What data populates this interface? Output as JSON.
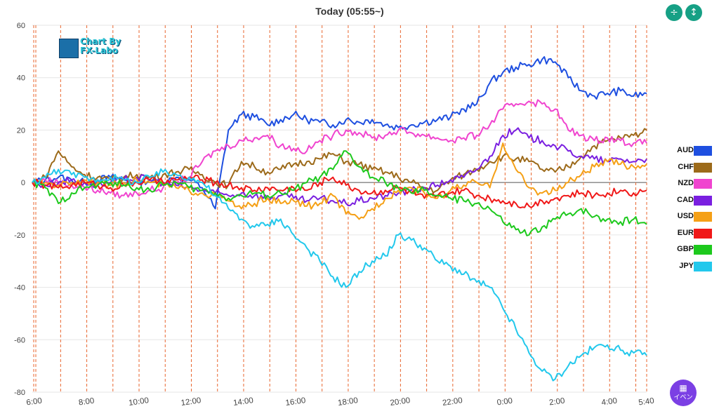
{
  "header": {
    "title": "Today  (05:55~)",
    "compress_icon": "compress-vertical-icon",
    "expand_icon": "expand-vertical-icon"
  },
  "watermark": {
    "line1": "Chart By",
    "line2": "FX-Labo"
  },
  "event_button": {
    "label": "イベン",
    "icon": "calendar-icon"
  },
  "colors": {
    "accent_button": "#16a085",
    "event_button": "#7b3fe4",
    "vline": "#e8652e",
    "zero_line": "#555555",
    "grid": "#e6e6e6"
  },
  "chart_data": {
    "type": "line",
    "title": "Today  (05:55~)",
    "ylim": [
      -80,
      60
    ],
    "yticks": [
      60,
      40,
      20,
      0,
      -20,
      -40,
      -60,
      -80
    ],
    "xlabels": [
      "6:00",
      "8:00",
      "10:00",
      "12:00",
      "14:00",
      "16:00",
      "18:00",
      "20:00",
      "22:00",
      "0:00",
      "2:00",
      "4:00",
      "5:40"
    ],
    "grid": true,
    "legend_position": "right",
    "x": [
      "5:55",
      "6:30",
      "7:00",
      "7:30",
      "8:00",
      "8:30",
      "9:00",
      "9:30",
      "10:00",
      "10:30",
      "11:00",
      "11:30",
      "12:00",
      "12:30",
      "13:00",
      "13:30",
      "14:00",
      "14:30",
      "15:00",
      "15:30",
      "16:00",
      "16:30",
      "17:00",
      "17:30",
      "18:00",
      "18:30",
      "19:00",
      "19:30",
      "20:00",
      "20:30",
      "21:00",
      "21:30",
      "22:00",
      "22:30",
      "23:00",
      "23:30",
      "0:00",
      "0:30",
      "1:00",
      "1:30",
      "2:00",
      "2:30",
      "3:00",
      "3:30",
      "4:00",
      "4:30",
      "5:00",
      "5:40"
    ],
    "series": [
      {
        "name": "AUD",
        "color": "#1e4fe0",
        "values": [
          0,
          1,
          2,
          1,
          0,
          1,
          2,
          1,
          0,
          1,
          0,
          2,
          1,
          -2,
          -10,
          20,
          26,
          25,
          22,
          24,
          26,
          24,
          23,
          22,
          24,
          23,
          24,
          22,
          21,
          22,
          23,
          24,
          25,
          28,
          30,
          38,
          42,
          44,
          45,
          47,
          46,
          40,
          35,
          33,
          34,
          35,
          33,
          34
        ]
      },
      {
        "name": "CHF",
        "color": "#9c6a1a",
        "values": [
          0,
          2,
          12,
          6,
          3,
          2,
          1,
          2,
          3,
          2,
          3,
          4,
          5,
          3,
          0,
          -1,
          8,
          6,
          4,
          5,
          7,
          8,
          9,
          11,
          8,
          7,
          5,
          4,
          2,
          0,
          -2,
          -3,
          1,
          3,
          5,
          8,
          10,
          9,
          8,
          5,
          4,
          6,
          10,
          14,
          16,
          17,
          18,
          20
        ]
      },
      {
        "name": "NZD",
        "color": "#f044cf",
        "values": [
          0,
          1,
          0,
          -1,
          -2,
          -3,
          -4,
          -5,
          -4,
          -3,
          -2,
          0,
          2,
          8,
          12,
          14,
          16,
          17,
          18,
          14,
          13,
          12,
          16,
          18,
          20,
          19,
          17,
          18,
          20,
          19,
          18,
          17,
          16,
          17,
          18,
          22,
          28,
          30,
          31,
          30,
          28,
          20,
          18,
          16,
          17,
          16,
          15,
          15
        ]
      },
      {
        "name": "CAD",
        "color": "#7a1fe0",
        "values": [
          0,
          -1,
          0,
          1,
          0,
          -1,
          0,
          1,
          2,
          1,
          0,
          -1,
          -2,
          -3,
          -4,
          -5,
          -4,
          -5,
          -6,
          -5,
          -6,
          -7,
          -6,
          -7,
          -8,
          -7,
          -6,
          -5,
          -4,
          -3,
          -2,
          -1,
          1,
          2,
          5,
          10,
          18,
          20,
          17,
          16,
          14,
          12,
          10,
          9,
          8,
          9,
          8,
          9
        ]
      },
      {
        "name": "USD",
        "color": "#f5a016",
        "values": [
          0,
          0,
          -1,
          0,
          1,
          0,
          -1,
          0,
          1,
          0,
          -1,
          -2,
          -3,
          -4,
          -5,
          -7,
          -10,
          -8,
          -6,
          -8,
          -7,
          -9,
          -8,
          -5,
          -12,
          -14,
          -10,
          -6,
          -3,
          -2,
          -4,
          -6,
          -3,
          -1,
          0,
          -2,
          15,
          5,
          -2,
          -4,
          -3,
          0,
          3,
          6,
          8,
          7,
          6,
          7
        ]
      },
      {
        "name": "EUR",
        "color": "#f01818",
        "values": [
          0,
          -1,
          -2,
          -1,
          0,
          -1,
          -2,
          -1,
          0,
          1,
          0,
          1,
          2,
          1,
          0,
          -1,
          -2,
          -3,
          -2,
          -3,
          -2,
          -3,
          0,
          2,
          -1,
          -3,
          -4,
          -3,
          -2,
          -4,
          -6,
          -5,
          -4,
          -3,
          -5,
          -6,
          -7,
          -8,
          -9,
          -7,
          -6,
          -5,
          -4,
          -5,
          -4,
          -3,
          -4,
          -3
        ]
      },
      {
        "name": "GBP",
        "color": "#1dc91d",
        "values": [
          0,
          -2,
          -8,
          -4,
          -2,
          -1,
          0,
          -1,
          -2,
          -3,
          -1,
          0,
          -2,
          -3,
          -4,
          -6,
          -5,
          -4,
          -5,
          -4,
          -3,
          0,
          2,
          5,
          12,
          6,
          2,
          0,
          -2,
          -4,
          -3,
          -5,
          -6,
          -7,
          -8,
          -10,
          -15,
          -18,
          -20,
          -17,
          -14,
          -12,
          -10,
          -13,
          -14,
          -15,
          -14,
          -16
        ]
      },
      {
        "name": "JPY",
        "color": "#22c8ec",
        "values": [
          0,
          2,
          5,
          3,
          2,
          1,
          2,
          1,
          0,
          2,
          4,
          3,
          2,
          0,
          -5,
          -10,
          -14,
          -17,
          -16,
          -14,
          -20,
          -25,
          -30,
          -36,
          -40,
          -34,
          -30,
          -28,
          -20,
          -22,
          -25,
          -30,
          -32,
          -35,
          -38,
          -40,
          -48,
          -56,
          -65,
          -72,
          -75,
          -70,
          -66,
          -63,
          -62,
          -64,
          -65,
          -66
        ]
      }
    ]
  }
}
